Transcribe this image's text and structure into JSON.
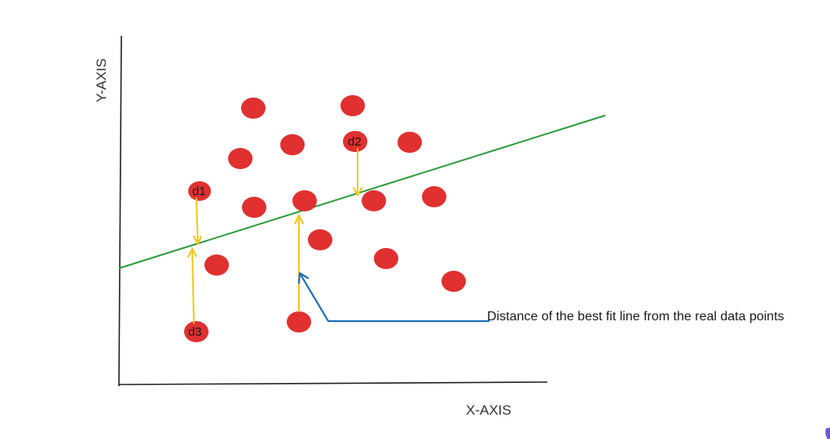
{
  "diagram": {
    "x_axis_label": "X-AXIS",
    "y_axis_label": "Y-AXIS",
    "annotation": "Distance of the best fit line from the real data points",
    "point_labels": {
      "d1": "d1",
      "d2": "d2",
      "d3": "d3"
    },
    "colors": {
      "points": "#e03030",
      "best_fit_line": "#2e9a3c",
      "distance_arrows": "#f5c518",
      "annotation_arrow": "#1f6fb5",
      "axes": "#222222"
    }
  }
}
